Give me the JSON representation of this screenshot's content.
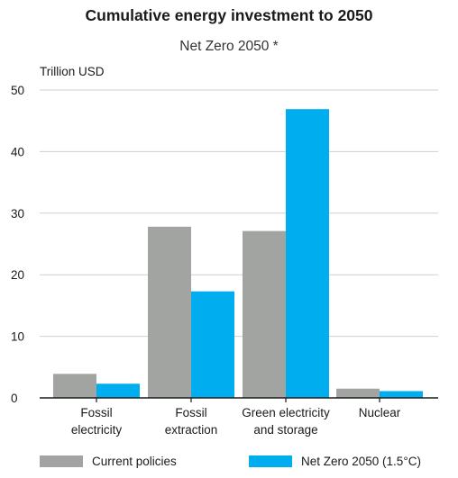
{
  "colors": {
    "current": "#a2a4a1",
    "netzero": "#00aeef",
    "grid": "#cfcfcf",
    "axis": "#1a1a1a"
  },
  "chart_data": {
    "type": "bar",
    "title": "Cumulative energy investment to 2050",
    "subtitle": "Net Zero 2050 *",
    "ylabel": "Trillion USD",
    "xlabel": "",
    "ylim": [
      0,
      50
    ],
    "yticks": [
      0,
      10,
      20,
      30,
      40,
      50
    ],
    "grid": true,
    "legend_position": "bottom",
    "categories": [
      [
        "Fossil",
        "electricity"
      ],
      [
        "Fossil",
        "extraction"
      ],
      [
        "Green electricity",
        "and storage"
      ],
      [
        "Nuclear"
      ]
    ],
    "series": [
      {
        "name": "Current policies",
        "color": "#a2a4a1",
        "values": [
          3.9,
          27.8,
          27.1,
          1.5
        ]
      },
      {
        "name": "Net Zero 2050 (1.5°C)",
        "color": "#00aeef",
        "values": [
          2.3,
          17.3,
          46.9,
          1.1
        ]
      }
    ]
  }
}
